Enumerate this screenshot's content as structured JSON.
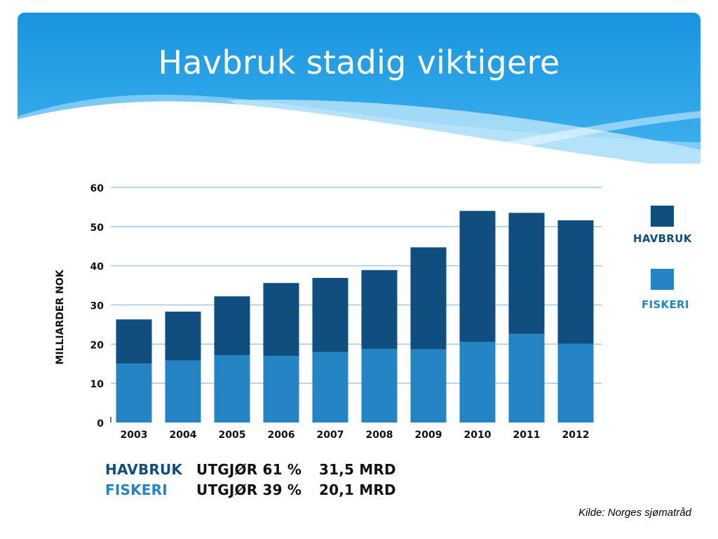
{
  "title": "Havbruk stadig viktigere",
  "colors": {
    "havbruk": "#0f4e7e",
    "fiskeri": "#2484c4",
    "banner": "#1a9be0",
    "grid": "#9ec9e8"
  },
  "chart_data": {
    "type": "bar",
    "stacked": true,
    "categories": [
      "2003",
      "2004",
      "2005",
      "2006",
      "2007",
      "2008",
      "2009",
      "2010",
      "2011",
      "2012"
    ],
    "series": [
      {
        "name": "FISKERI",
        "values": [
          15.0,
          15.8,
          17.2,
          17.0,
          18.0,
          18.8,
          18.7,
          20.6,
          22.6,
          20.1
        ]
      },
      {
        "name": "HAVBRUK",
        "values": [
          11.3,
          12.5,
          15.0,
          18.6,
          18.9,
          20.1,
          26.0,
          33.4,
          30.9,
          31.5
        ]
      }
    ],
    "ylabel": "MILLIARDER NOK",
    "ylim": [
      0,
      60
    ],
    "yticks": [
      "0",
      "10",
      "20",
      "30",
      "40",
      "50",
      "60"
    ],
    "grid": true,
    "legend_placement": "right"
  },
  "summary": [
    {
      "name": "HAVBRUK",
      "share": "UTGJØR 61 %",
      "amount": "31,5 MRD"
    },
    {
      "name": "FISKERI",
      "share": "UTGJØR 39 %",
      "amount": "20,1 MRD"
    }
  ],
  "source": "Kilde: Norges sjømatråd"
}
